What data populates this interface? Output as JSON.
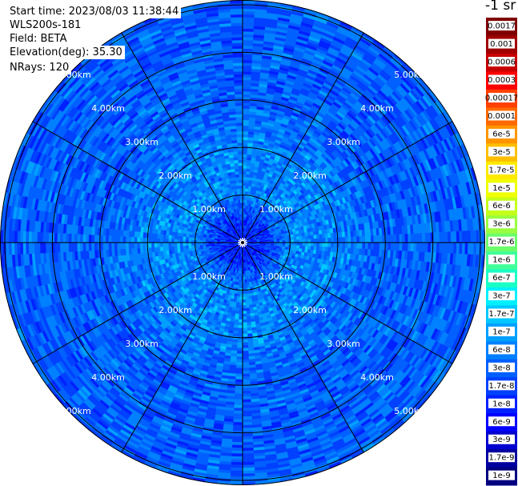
{
  "info": {
    "start_time": "Start time: 2023/08/03 11:38:44",
    "instrument": "WLS200s-181",
    "field": "Field: BETA",
    "elevation": "Elevation(deg): 35.30",
    "nrays": "NRays: 120"
  },
  "unit_label": "-1 sr",
  "chart_data": {
    "type": "heatmap",
    "projection": "polar",
    "field": "BETA",
    "n_rays": 120,
    "ring_labels": [
      "1.00km",
      "2.00km",
      "3.00km",
      "4.00km",
      "5.00km"
    ],
    "ring_ranges_km": [
      1,
      2,
      3,
      4,
      5
    ],
    "max_range_km": 5.1,
    "spokes_deg": [
      0,
      30,
      60,
      90,
      120,
      150,
      180,
      210,
      240,
      270,
      300,
      330
    ],
    "colorbar": {
      "labels": [
        "0.0017",
        "0.001",
        "0.0006",
        "0.0003",
        "0.00017",
        "0.0001",
        "6e-5",
        "3e-5",
        "1.7e-5",
        "1e-5",
        "6e-6",
        "3e-6",
        "1.7e-6",
        "1e-6",
        "6e-7",
        "3e-7",
        "1.7e-7",
        "1e-7",
        "6e-8",
        "3e-8",
        "1.7e-8",
        "1e-8",
        "6e-9",
        "3e-9",
        "1.7e-9",
        "1e-9"
      ],
      "colors": [
        "#800000",
        "#a00000",
        "#c80000",
        "#ff0000",
        "#ff4000",
        "#ff6a00",
        "#ff9500",
        "#ffbf00",
        "#ffea00",
        "#f0ff00",
        "#c4ff1a",
        "#99ff40",
        "#6aff6a",
        "#40ff99",
        "#1affc4",
        "#00f0ff",
        "#00c8ff",
        "#00a0ff",
        "#0080ff",
        "#0060ff",
        "#0040ff",
        "#0020ff",
        "#0000ff",
        "#0000d0",
        "#0000a0",
        "#000080"
      ]
    },
    "profile": [
      {
        "range_km": 0.4,
        "value": 1e-08
      },
      {
        "range_km": 1.0,
        "value": 6e-08
      },
      {
        "range_km": 2.0,
        "value": 6e-08
      },
      {
        "range_km": 3.0,
        "value": 3e-08
      },
      {
        "range_km": 4.0,
        "value": 3e-08
      },
      {
        "range_km": 5.0,
        "value": 3e-08
      }
    ]
  }
}
